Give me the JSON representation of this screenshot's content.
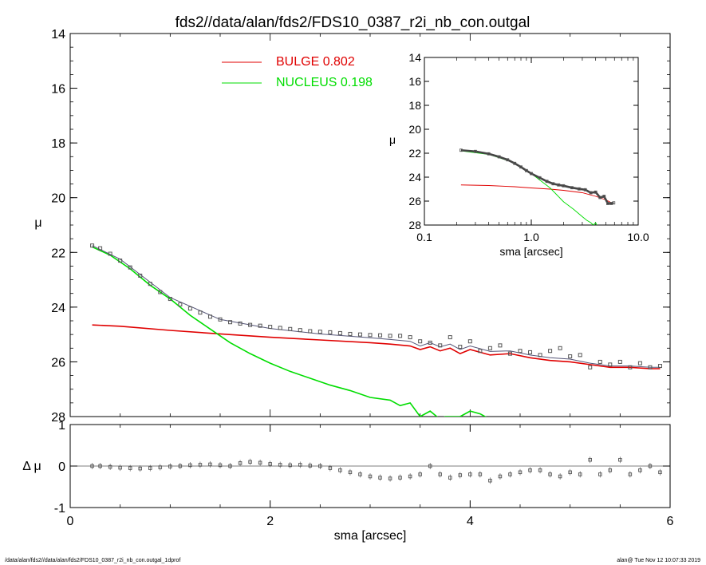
{
  "title": "fds2//data/alan/fds2/FDS10_0387_r2i_nb_con.outgal",
  "footer": {
    "left": "/data/alan/fds2//data/alan/fds2/FDS10_0387_r2i_nb_con.outgal_1dprof",
    "right": "alan@  Tue Nov 12 10:07:33 2019"
  },
  "colors": {
    "bulge": "#e00000",
    "nucleus": "#00dd00",
    "data": "#555555",
    "model": "#555577",
    "axes": "#000000"
  },
  "legend": [
    {
      "label": "BULGE  0.802",
      "color": "#e00000"
    },
    {
      "label": "NUCLEUS  0.198",
      "color": "#00dd00"
    }
  ],
  "chart_data": [
    {
      "type": "scatter",
      "panel": "main",
      "xlabel": "",
      "ylabel": "μ",
      "xlim": [
        0,
        6
      ],
      "ylim": [
        28,
        14
      ],
      "yticks": [
        "14",
        "16",
        "18",
        "20",
        "22",
        "24",
        "26",
        "28"
      ],
      "data_r": [
        0.22,
        0.3,
        0.4,
        0.5,
        0.6,
        0.7,
        0.8,
        0.9,
        1.0,
        1.1,
        1.2,
        1.3,
        1.4,
        1.5,
        1.6,
        1.7,
        1.8,
        1.9,
        2.0,
        2.1,
        2.2,
        2.3,
        2.4,
        2.5,
        2.6,
        2.7,
        2.8,
        2.9,
        3.0,
        3.1,
        3.2,
        3.3,
        3.4,
        3.5,
        3.6,
        3.7,
        3.8,
        3.9,
        4.0,
        4.1,
        4.2,
        4.3,
        4.4,
        4.5,
        4.6,
        4.7,
        4.8,
        4.9,
        5.0,
        5.1,
        5.2,
        5.3,
        5.4,
        5.5,
        5.6,
        5.7,
        5.8,
        5.9
      ],
      "data_mu": [
        21.75,
        21.85,
        22.05,
        22.3,
        22.55,
        22.85,
        23.15,
        23.45,
        23.7,
        23.9,
        24.05,
        24.2,
        24.35,
        24.45,
        24.55,
        24.6,
        24.65,
        24.68,
        24.72,
        24.76,
        24.8,
        24.84,
        24.88,
        24.9,
        24.92,
        24.95,
        24.98,
        25.0,
        25.02,
        25.03,
        25.05,
        25.05,
        25.1,
        25.25,
        25.3,
        25.4,
        25.1,
        25.45,
        25.25,
        25.6,
        25.5,
        25.4,
        25.7,
        25.6,
        25.65,
        25.75,
        25.6,
        25.5,
        25.8,
        25.75,
        26.2,
        26.0,
        26.1,
        26.0,
        26.2,
        26.05,
        26.2,
        26.15
      ],
      "series": [
        {
          "name": "BULGE",
          "color": "#e00000",
          "x": [
            0.22,
            0.5,
            1.0,
            1.5,
            2.0,
            2.5,
            3.0,
            3.2,
            3.4,
            3.5,
            3.6,
            3.7,
            3.8,
            3.9,
            4.0,
            4.2,
            4.4,
            4.6,
            4.8,
            5.0,
            5.2,
            5.4,
            5.6,
            5.8,
            5.9
          ],
          "y": [
            24.65,
            24.7,
            24.85,
            24.98,
            25.1,
            25.2,
            25.3,
            25.35,
            25.42,
            25.55,
            25.45,
            25.6,
            25.5,
            25.7,
            25.55,
            25.75,
            25.7,
            25.85,
            25.95,
            26.0,
            26.1,
            26.2,
            26.2,
            26.25,
            26.25
          ]
        },
        {
          "name": "NUCLEUS",
          "color": "#00dd00",
          "x": [
            0.22,
            0.4,
            0.6,
            0.8,
            1.0,
            1.2,
            1.4,
            1.6,
            1.8,
            2.0,
            2.2,
            2.4,
            2.6,
            2.8,
            3.0,
            3.2,
            3.3,
            3.4,
            3.5,
            3.6,
            3.7,
            3.75,
            3.9,
            4.0,
            4.1,
            4.2
          ],
          "y": [
            21.8,
            22.1,
            22.6,
            23.2,
            23.7,
            24.3,
            24.8,
            25.3,
            25.7,
            26.05,
            26.35,
            26.6,
            26.85,
            27.05,
            27.3,
            27.4,
            27.6,
            27.5,
            28.0,
            27.8,
            28.1,
            28.0,
            28.0,
            27.8,
            27.9,
            28.1
          ]
        },
        {
          "name": "MODEL",
          "color": "#555577",
          "x": [
            0.22,
            0.5,
            1.0,
            1.5,
            2.0,
            2.5,
            3.0,
            3.2,
            3.4,
            3.5,
            3.6,
            3.7,
            3.8,
            3.9,
            4.0,
            4.2,
            4.4,
            4.6,
            4.8,
            5.0,
            5.2,
            5.4,
            5.6,
            5.8,
            5.9
          ],
          "y": [
            21.75,
            22.25,
            23.65,
            24.45,
            24.78,
            24.98,
            25.12,
            25.18,
            25.25,
            25.42,
            25.3,
            25.45,
            25.35,
            25.55,
            25.42,
            25.62,
            25.6,
            25.75,
            25.85,
            25.9,
            26.05,
            26.15,
            26.15,
            26.2,
            26.2
          ]
        }
      ]
    },
    {
      "type": "scatter",
      "panel": "residual",
      "xlabel": "sma [arcsec]",
      "ylabel": "Δ μ",
      "xlim": [
        0,
        6
      ],
      "ylim": [
        -1,
        1
      ],
      "xticks": [
        "0",
        "2",
        "4",
        "6"
      ],
      "yticks": [
        "1",
        "0",
        "-1"
      ],
      "r": [
        0.22,
        0.3,
        0.4,
        0.5,
        0.6,
        0.7,
        0.8,
        0.9,
        1.0,
        1.1,
        1.2,
        1.3,
        1.4,
        1.5,
        1.6,
        1.7,
        1.8,
        1.9,
        2.0,
        2.1,
        2.2,
        2.3,
        2.4,
        2.5,
        2.6,
        2.7,
        2.8,
        2.9,
        3.0,
        3.1,
        3.2,
        3.3,
        3.4,
        3.5,
        3.6,
        3.7,
        3.8,
        3.9,
        4.0,
        4.1,
        4.2,
        4.3,
        4.4,
        4.5,
        4.6,
        4.7,
        4.8,
        4.9,
        5.0,
        5.1,
        5.2,
        5.3,
        5.4,
        5.5,
        5.6,
        5.7,
        5.8,
        5.9
      ],
      "dmu": [
        0.0,
        0.0,
        -0.02,
        -0.04,
        -0.05,
        -0.06,
        -0.05,
        -0.03,
        -0.01,
        0.0,
        0.02,
        0.03,
        0.04,
        0.02,
        0.0,
        0.07,
        0.1,
        0.08,
        0.05,
        0.03,
        0.02,
        0.03,
        0.01,
        0.0,
        -0.05,
        -0.1,
        -0.15,
        -0.2,
        -0.25,
        -0.28,
        -0.3,
        -0.28,
        -0.25,
        -0.2,
        0.0,
        -0.2,
        -0.28,
        -0.22,
        -0.2,
        -0.2,
        -0.35,
        -0.25,
        -0.2,
        -0.15,
        -0.1,
        -0.1,
        -0.2,
        -0.25,
        -0.15,
        -0.2,
        0.15,
        -0.2,
        -0.1,
        0.15,
        -0.2,
        -0.1,
        0.0,
        -0.15
      ]
    },
    {
      "type": "scatter",
      "panel": "inset",
      "xlabel": "sma [arcsec]",
      "ylabel": "μ",
      "xscale": "log",
      "xlim": [
        0.1,
        10.0
      ],
      "ylim": [
        28,
        14
      ],
      "xticks": [
        "0.1",
        "1.0",
        "10.0"
      ],
      "yticks": [
        "14",
        "16",
        "18",
        "20",
        "22",
        "24",
        "26",
        "28"
      ],
      "series": [
        {
          "name": "BULGE",
          "color": "#e00000",
          "x": [
            0.22,
            0.4,
            0.7,
            1.0,
            1.5,
            2.0,
            3.0,
            4.0,
            5.0,
            5.9
          ],
          "y": [
            24.65,
            24.7,
            24.8,
            24.9,
            25.0,
            25.1,
            25.3,
            25.6,
            25.9,
            26.25
          ]
        },
        {
          "name": "NUCLEUS",
          "color": "#00dd00",
          "x": [
            0.22,
            0.4,
            0.7,
            1.0,
            1.5,
            2.0,
            2.5,
            3.0,
            3.3,
            3.6,
            3.8,
            4.0,
            4.2
          ],
          "y": [
            21.8,
            22.1,
            22.8,
            23.7,
            24.9,
            26.05,
            26.7,
            27.3,
            27.6,
            27.8,
            28.0,
            27.8,
            28.2
          ]
        },
        {
          "name": "DATA",
          "color": "#555555",
          "x": [
            0.22,
            0.3,
            0.4,
            0.5,
            0.6,
            0.7,
            0.8,
            0.9,
            1.0,
            1.2,
            1.4,
            1.6,
            1.8,
            2.0,
            2.4,
            2.8,
            3.2,
            3.6,
            4.0,
            4.4,
            4.8,
            5.2,
            5.6,
            5.9
          ],
          "y": [
            21.75,
            21.85,
            22.05,
            22.3,
            22.55,
            22.85,
            23.15,
            23.45,
            23.7,
            24.05,
            24.35,
            24.55,
            24.65,
            24.72,
            24.88,
            24.98,
            25.05,
            25.3,
            25.25,
            25.7,
            25.6,
            26.2,
            26.2,
            26.15
          ]
        }
      ]
    }
  ]
}
